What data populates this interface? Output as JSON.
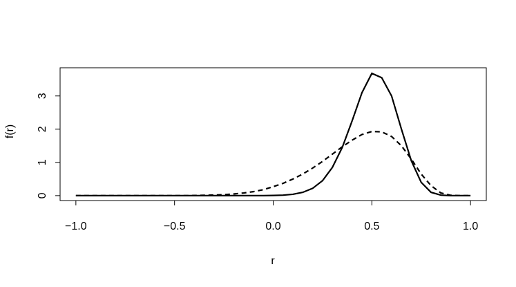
{
  "chart_data": {
    "type": "line",
    "x_label": "r",
    "y_label": "f(r)",
    "x": [
      -1,
      -0.95,
      -0.9,
      -0.85,
      -0.8,
      -0.75,
      -0.7,
      -0.65,
      -0.6,
      -0.55,
      -0.5,
      -0.45,
      -0.4,
      -0.35,
      -0.3,
      -0.25,
      -0.2,
      -0.15,
      -0.1,
      -0.05,
      0,
      0.05,
      0.1,
      0.15,
      0.2,
      0.25,
      0.3,
      0.35,
      0.4,
      0.45,
      0.5,
      0.55,
      0.6,
      0.65,
      0.7,
      0.75,
      0.8,
      0.85,
      0.9,
      0.95,
      1
    ],
    "series": [
      {
        "color": "#000000",
        "dash": false,
        "values": [
          0,
          0,
          0,
          0,
          0,
          0,
          0,
          0,
          0,
          0,
          0,
          0,
          0,
          0,
          0,
          0,
          0,
          0,
          0,
          0,
          0.005,
          0.015,
          0.04,
          0.1,
          0.22,
          0.45,
          0.85,
          1.45,
          2.25,
          3.1,
          3.68,
          3.55,
          3.0,
          2.0,
          1.05,
          0.4,
          0.1,
          0.015,
          0,
          0,
          0
        ]
      },
      {
        "color": "#000000",
        "dash": true,
        "values": [
          0,
          0,
          0,
          0,
          0,
          0,
          0,
          0,
          0,
          0,
          0,
          0,
          0.005,
          0.01,
          0.02,
          0.03,
          0.05,
          0.08,
          0.12,
          0.18,
          0.27,
          0.37,
          0.5,
          0.65,
          0.83,
          1.03,
          1.25,
          1.47,
          1.67,
          1.84,
          1.93,
          1.92,
          1.78,
          1.5,
          1.1,
          0.65,
          0.3,
          0.08,
          0.01,
          0,
          0
        ]
      }
    ],
    "xlim": [
      -1.08,
      1.08
    ],
    "ylim": [
      -0.148,
      3.848
    ],
    "xticks": [
      {
        "value": -1,
        "label": "−1.0"
      },
      {
        "value": -0.5,
        "label": "−0.5"
      },
      {
        "value": 0,
        "label": "0.0"
      },
      0.5,
      {
        "value": 1,
        "label": "1.0"
      }
    ],
    "yticks": [
      0,
      1,
      2,
      3
    ],
    "grid": false
  }
}
